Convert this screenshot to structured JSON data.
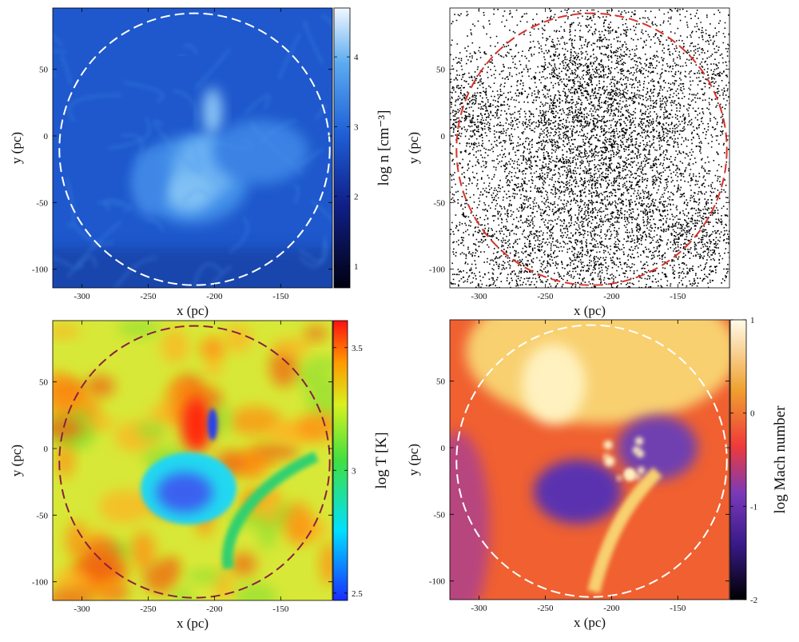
{
  "chart_data": [
    {
      "type": "image",
      "xlabel": "x (pc)",
      "ylabel": "y (pc)",
      "xlim": [
        -322,
        -111
      ],
      "ylim": [
        -114,
        96
      ],
      "xticks": [
        -300,
        -250,
        -200,
        -150
      ],
      "yticks": [
        -100,
        -50,
        0,
        50
      ],
      "circle": {
        "center": [
          -215,
          -10
        ],
        "radius": 102,
        "color": "#ffffff"
      },
      "colorbar": {
        "label": "log n [cm⁻³]",
        "lim": [
          0.69,
          4.7
        ],
        "ticks": [
          1,
          2,
          3,
          4
        ]
      }
    },
    {
      "type": "image",
      "xlabel": "x (pc)",
      "ylabel": "y (pc)",
      "xlim": [
        -322,
        -111
      ],
      "ylim": [
        -114,
        96
      ],
      "xticks": [
        -300,
        -250,
        -200,
        -150
      ],
      "yticks": [
        -100,
        -50,
        0,
        50
      ],
      "circle": {
        "center": [
          -215,
          -10
        ],
        "radius": 102,
        "color": "#d8322a"
      }
    },
    {
      "type": "image",
      "xlabel": "x (pc)",
      "ylabel": "y (pc)",
      "xlim": [
        -322,
        -111
      ],
      "ylim": [
        -114,
        96
      ],
      "xticks": [
        -300,
        -250,
        -200,
        -150
      ],
      "yticks": [
        -100,
        -50,
        0,
        50
      ],
      "circle": {
        "center": [
          -215,
          -10
        ],
        "radius": 102,
        "color": "#8a2040"
      },
      "colorbar": {
        "label": "log T [K]",
        "lim": [
          2.47,
          3.61
        ],
        "ticks": [
          2.5,
          3,
          3.5
        ]
      }
    },
    {
      "type": "image",
      "xlabel": "x (pc)",
      "ylabel": "y (pc)",
      "xlim": [
        -322,
        -111
      ],
      "ylim": [
        -114,
        96
      ],
      "xticks": [
        -300,
        -250,
        -200,
        -150
      ],
      "yticks": [
        -100,
        -50,
        0,
        50
      ],
      "circle": {
        "center": [
          -215,
          -10
        ],
        "radius": 102,
        "color": "#ffffff"
      },
      "colorbar": {
        "label": "log Mach number",
        "lim": [
          -2,
          1
        ],
        "ticks": [
          -2,
          -1,
          0,
          1
        ]
      }
    }
  ]
}
